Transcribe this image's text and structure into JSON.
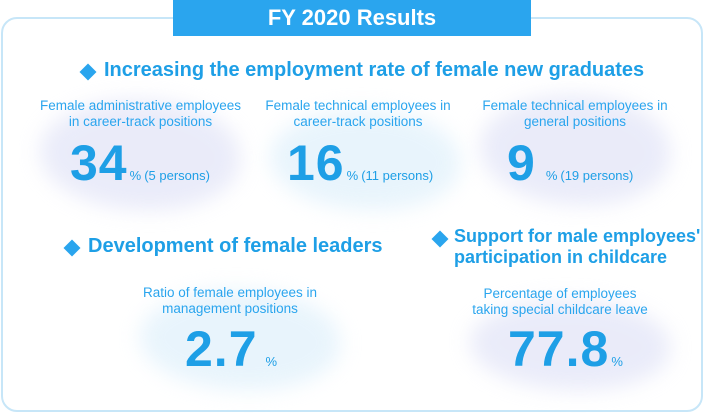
{
  "title": "FY 2020 Results",
  "sections": {
    "employment": {
      "heading": "Increasing the employment rate of female new graduates",
      "stats": [
        {
          "label_line1": "Female administrative employees",
          "label_line2": "in career-track positions",
          "value": "34",
          "unit": "%",
          "persons": "(5 persons)"
        },
        {
          "label_line1": "Female technical employees in",
          "label_line2": "career-track positions",
          "value": "16",
          "unit": "%",
          "persons": "(11 persons)"
        },
        {
          "label_line1": "Female technical employees in",
          "label_line2": "general positions",
          "value": "9",
          "unit": "%",
          "persons": "(19 persons)"
        }
      ]
    },
    "leaders": {
      "heading": "Development of female leaders",
      "label_line1": "Ratio of female employees in",
      "label_line2": "management positions",
      "value": "2.7",
      "unit": "%"
    },
    "childcare": {
      "heading_line1": "Support for male employees'",
      "heading_line2": "participation in childcare",
      "label_line1": "Percentage of employees",
      "label_line2": "taking special childcare leave",
      "value": "77.8",
      "unit": "%"
    }
  }
}
